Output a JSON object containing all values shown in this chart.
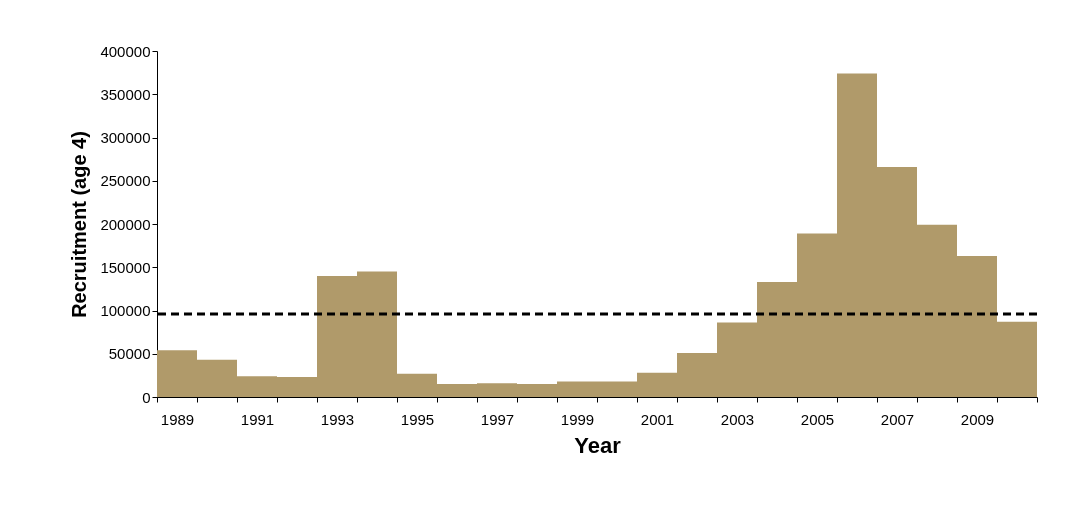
{
  "chart_data": {
    "type": "bar",
    "xlabel": "Year",
    "ylabel": "Recruitment (age 4)",
    "categories": [
      "1989",
      null,
      "1991",
      null,
      "1993",
      null,
      "1995",
      null,
      "1997",
      null,
      "1999",
      null,
      "2001",
      null,
      "2003",
      null,
      "2005",
      null,
      "2007",
      null,
      "2009",
      null
    ],
    "values": [
      54000,
      43000,
      24000,
      23000,
      140000,
      145000,
      27000,
      15000,
      16000,
      15000,
      18000,
      18000,
      28000,
      51000,
      86000,
      133000,
      189000,
      374000,
      266000,
      199000,
      163000,
      87000
    ],
    "color": "#b09a6a",
    "ylim": [
      0,
      400000
    ],
    "yticks": [
      0,
      50000,
      100000,
      150000,
      200000,
      250000,
      300000,
      350000,
      400000
    ],
    "grid": false,
    "ref_lines": [
      {
        "axis": "y",
        "value": 96000,
        "line_style": "dashed",
        "color": "#000000"
      }
    ]
  }
}
